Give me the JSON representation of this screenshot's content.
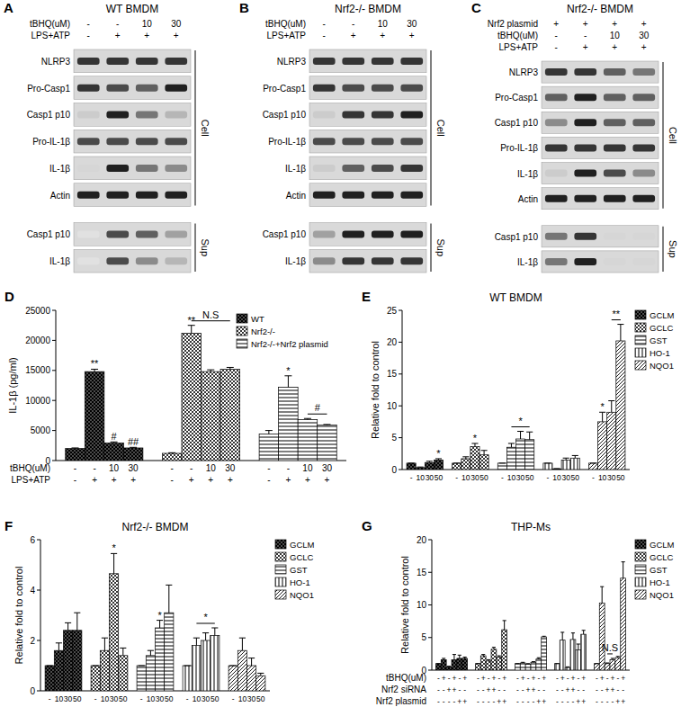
{
  "blots": [
    {
      "panel": "A",
      "title": "WT BMDM",
      "headers": [
        {
          "label": "tBHQ(uM)",
          "labels": [
            "-",
            "-",
            "10",
            "30"
          ]
        },
        {
          "label": "LPS+ATP",
          "labels": [
            "-",
            "+",
            "+",
            "+"
          ]
        }
      ],
      "groups": [
        {
          "name": "Cell",
          "rows": [
            {
              "label": "NLRP3",
              "intensities": [
                0.8,
                0.8,
                0.8,
                0.8
              ]
            },
            {
              "label": "Pro-Casp1",
              "intensities": [
                0.8,
                0.7,
                0.6,
                0.9
              ]
            },
            {
              "label": "Casp1 p10",
              "intensities": [
                0.1,
                0.9,
                0.5,
                0.2
              ]
            },
            {
              "label": "Pro-IL-1β",
              "intensities": [
                0.7,
                0.7,
                0.7,
                0.7
              ]
            },
            {
              "label": "IL-1β",
              "intensities": [
                0.05,
                0.9,
                0.5,
                0.4
              ]
            },
            {
              "label": "Actin",
              "intensities": [
                0.9,
                0.9,
                0.9,
                0.9
              ]
            }
          ]
        },
        {
          "name": "Sup",
          "rows": [
            {
              "label": "Casp1 p10",
              "intensities": [
                0,
                0.7,
                0.6,
                0.3
              ]
            },
            {
              "label": "IL-1β",
              "intensities": [
                0,
                0.7,
                0.4,
                0.2
              ]
            }
          ]
        }
      ]
    },
    {
      "panel": "B",
      "title": "Nrf2-/- BMDM",
      "headers": [
        {
          "label": "tBHQ(uM)",
          "labels": [
            "-",
            "-",
            "10",
            "30"
          ]
        },
        {
          "label": "LPS+ATP",
          "labels": [
            "-",
            "+",
            "+",
            "+"
          ]
        }
      ],
      "groups": [
        {
          "name": "Cell",
          "rows": [
            {
              "label": "NLRP3",
              "intensities": [
                0.8,
                0.8,
                0.8,
                0.8
              ]
            },
            {
              "label": "Pro-Casp1",
              "intensities": [
                0.8,
                0.7,
                0.7,
                0.7
              ]
            },
            {
              "label": "Casp1 p10",
              "intensities": [
                0.1,
                0.8,
                0.8,
                0.9
              ]
            },
            {
              "label": "Pro-IL-1β",
              "intensities": [
                0.7,
                0.7,
                0.7,
                0.7
              ]
            },
            {
              "label": "IL-1β",
              "intensities": [
                0.1,
                0.6,
                0.7,
                0.8
              ]
            },
            {
              "label": "Actin",
              "intensities": [
                0.9,
                0.9,
                0.9,
                0.9
              ]
            }
          ]
        },
        {
          "name": "Sup",
          "rows": [
            {
              "label": "Casp1 p10",
              "intensities": [
                0.3,
                0.9,
                0.9,
                0.9
              ]
            },
            {
              "label": "IL-1β",
              "intensities": [
                0.4,
                0.8,
                0.8,
                0.8
              ]
            }
          ]
        }
      ]
    },
    {
      "panel": "C",
      "title": "Nrf2-/- BMDM",
      "headers": [
        {
          "label": "Nrf2 plasmid",
          "labels": [
            "+",
            "+",
            "+",
            "+"
          ]
        },
        {
          "label": "tBHQ(uM)",
          "labels": [
            "-",
            "-",
            "10",
            "30"
          ]
        },
        {
          "label": "LPS+ATP",
          "labels": [
            "-",
            "+",
            "+",
            "+"
          ]
        }
      ],
      "groups": [
        {
          "name": "Cell",
          "rows": [
            {
              "label": "NLRP3",
              "intensities": [
                0.8,
                0.8,
                0.6,
                0.5
              ]
            },
            {
              "label": "Pro-Casp1",
              "intensities": [
                0.6,
                0.9,
                0.6,
                0.6
              ]
            },
            {
              "label": "Casp1 p10",
              "intensities": [
                0.4,
                0.9,
                0.6,
                0.6
              ]
            },
            {
              "label": "Pro-IL-1β",
              "intensities": [
                0.8,
                0.8,
                0.8,
                0.8
              ]
            },
            {
              "label": "IL-1β",
              "intensities": [
                0.1,
                0.9,
                0.7,
                0.4
              ]
            },
            {
              "label": "Actin",
              "intensities": [
                0.9,
                0.9,
                0.9,
                0.9
              ]
            }
          ]
        },
        {
          "name": "Sup",
          "rows": [
            {
              "label": "Casp1 p10",
              "intensities": [
                0.5,
                0.8,
                0.05,
                0.05
              ]
            },
            {
              "label": "IL-1β",
              "intensities": [
                0.5,
                0.9,
                0.05,
                0.05
              ]
            }
          ]
        }
      ]
    }
  ],
  "chart_data": [
    {
      "panel": "D",
      "type": "bar",
      "y_label": "IL-1β (pg/ml)",
      "ylim": [
        0,
        25000
      ],
      "yticks": [
        0,
        5000,
        10000,
        15000,
        20000,
        25000
      ],
      "grid": false,
      "legend": "upper right",
      "x_rows": [
        {
          "label": "tBHQ(uM)",
          "labels": [
            "-",
            "-",
            "10",
            "30"
          ]
        },
        {
          "label": "LPS+ATP",
          "labels": [
            "-",
            "+",
            "+",
            "+"
          ]
        }
      ],
      "series": [
        {
          "name": "WT",
          "color": "#000000",
          "values": [
            2000,
            14800,
            2900,
            2100
          ],
          "errors": [
            100,
            400,
            200,
            100
          ]
        },
        {
          "name": "Nrf2-/-",
          "color": "#000000",
          "values": [
            1200,
            21200,
            14800,
            15200
          ],
          "errors": [
            100,
            1300,
            300,
            300
          ]
        },
        {
          "name": "Nrf2-/-+Nrf2 plasmid",
          "color": "#000000",
          "values": [
            4400,
            12200,
            6800,
            5900
          ],
          "errors": [
            600,
            1900,
            200,
            100
          ]
        }
      ],
      "annotations": [
        {
          "text": "**",
          "series": 0,
          "from": 1,
          "to": 1
        },
        {
          "text": "#",
          "series": 0,
          "from": 2,
          "to": 2
        },
        {
          "text": "##",
          "series": 0,
          "from": 3,
          "to": 3
        },
        {
          "text": "**",
          "series": 1,
          "from": 1,
          "to": 1
        },
        {
          "text": "N.S",
          "series": 1,
          "from": 1,
          "to": 3
        },
        {
          "text": "*",
          "series": 2,
          "from": 1,
          "to": 1
        },
        {
          "text": "#",
          "series": 2,
          "from": 2,
          "to": 3
        }
      ]
    },
    {
      "panel": "E",
      "type": "bar",
      "title": "WT BMDM",
      "y_label": "Relative fold to control",
      "ylim": [
        0,
        25
      ],
      "yticks": [
        0,
        5,
        10,
        15,
        20,
        25
      ],
      "grid": false,
      "legend": "right",
      "x_rows": [
        {
          "labels": [
            "-",
            "10",
            "30",
            "50"
          ]
        }
      ],
      "series": [
        {
          "name": "GCLM",
          "color": "#000000",
          "values": [
            1,
            0.3,
            1.1,
            1.5
          ],
          "errors": [
            0,
            0.1,
            0.2,
            0.2
          ]
        },
        {
          "name": "GCLC",
          "color": "#000000",
          "values": [
            1,
            1.7,
            3.6,
            2.3
          ],
          "errors": [
            0,
            0.3,
            0.5,
            0.7
          ]
        },
        {
          "name": "GST",
          "color": "#000000",
          "values": [
            1,
            3.5,
            4.8,
            4.7
          ],
          "errors": [
            0,
            0.6,
            1.2,
            1.2
          ]
        },
        {
          "name": "HO-1",
          "color": "#000000",
          "values": [
            1,
            0.1,
            1.5,
            1.8
          ],
          "errors": [
            0,
            0.05,
            0.3,
            0.4
          ]
        },
        {
          "name": "NQO1",
          "color": "#000000",
          "values": [
            1,
            7.5,
            9,
            20.2
          ],
          "errors": [
            0,
            1.5,
            1.8,
            2.6
          ]
        }
      ],
      "annotations": [
        {
          "text": "*",
          "series": 0,
          "from": 3,
          "to": 3
        },
        {
          "text": "*",
          "series": 1,
          "from": 2,
          "to": 2
        },
        {
          "text": "*",
          "series": 2,
          "from": 1,
          "to": 3
        },
        {
          "text": "*",
          "series": 4,
          "from": 1,
          "to": 1
        },
        {
          "text": "**",
          "series": 4,
          "from": 2,
          "to": 3
        }
      ]
    },
    {
      "panel": "F",
      "type": "bar",
      "title": "Nrf2-/- BMDM",
      "y_label": "Relative fold to control",
      "ylim": [
        0,
        6
      ],
      "yticks": [
        0,
        2,
        4,
        6
      ],
      "grid": false,
      "legend": "right",
      "x_rows": [
        {
          "labels": [
            "-",
            "10",
            "30",
            "50"
          ]
        }
      ],
      "series": [
        {
          "name": "GCLM",
          "color": "#000000",
          "values": [
            1,
            1.6,
            2.4,
            2.4
          ],
          "errors": [
            0,
            0.3,
            0.3,
            0.7
          ]
        },
        {
          "name": "GCLC",
          "color": "#000000",
          "values": [
            1,
            1.6,
            4.65,
            1.4
          ],
          "errors": [
            0,
            0.5,
            0.8,
            0.3
          ]
        },
        {
          "name": "GST",
          "color": "#000000",
          "values": [
            1,
            1.4,
            2.5,
            3.1
          ],
          "errors": [
            0,
            0.2,
            0.3,
            1.1
          ]
        },
        {
          "name": "HO-1",
          "color": "#000000",
          "values": [
            1,
            1.8,
            2,
            2.2
          ],
          "errors": [
            0,
            0.3,
            0.3,
            0.3
          ]
        },
        {
          "name": "NQO1",
          "color": "#000000",
          "values": [
            1,
            1.6,
            1,
            0.6
          ],
          "errors": [
            0,
            0.5,
            0.3,
            0.1
          ]
        }
      ],
      "annotations": [
        {
          "text": "*",
          "series": 1,
          "from": 2,
          "to": 2
        },
        {
          "text": "*",
          "series": 2,
          "from": 2,
          "to": 2
        },
        {
          "text": "*",
          "series": 3,
          "from": 1,
          "to": 3
        }
      ]
    },
    {
      "panel": "G",
      "type": "bar",
      "title": "THP-Ms",
      "y_label": "Relative fold to control",
      "ylim": [
        0,
        20
      ],
      "yticks": [
        0,
        5,
        10,
        15,
        20
      ],
      "grid": false,
      "legend": "right",
      "x_rows": [
        {
          "label": "tBHQ(uM)",
          "labels": [
            "-",
            "+",
            "-",
            "+",
            "-",
            "+"
          ]
        },
        {
          "label": "Nrf2 siRNA",
          "labels": [
            "-",
            "-",
            "+",
            "+",
            "-",
            "-"
          ]
        },
        {
          "label": "Nrf2 plasmid",
          "labels": [
            "-",
            "-",
            "-",
            "-",
            "+",
            "+"
          ]
        }
      ],
      "series": [
        {
          "name": "GCLM",
          "color": "#000000",
          "values": [
            1,
            1.6,
            0.5,
            1.6,
            1.8,
            1.8
          ],
          "errors": [
            0,
            0.2,
            0.1,
            0.8,
            0.5,
            0.2
          ]
        },
        {
          "name": "GCLC",
          "color": "#000000",
          "values": [
            1,
            2.2,
            1.4,
            3.2,
            2,
            6.2
          ],
          "errors": [
            0,
            0.2,
            0.2,
            0.3,
            0.2,
            1.4
          ]
        },
        {
          "name": "GST",
          "color": "#000000",
          "values": [
            1,
            1.1,
            0.9,
            1.2,
            1.7,
            5.1
          ],
          "errors": [
            0,
            0.1,
            0.1,
            0.1,
            0.2,
            0.1
          ]
        },
        {
          "name": "HO-1",
          "color": "#000000",
          "values": [
            1,
            4.6,
            0.4,
            4.7,
            3.1,
            5.5
          ],
          "errors": [
            0,
            1.2,
            0.1,
            1,
            0.9,
            0.6
          ]
        },
        {
          "name": "NQO1",
          "color": "#000000",
          "values": [
            1,
            10.3,
            1,
            1.6,
            1.9,
            14.1
          ],
          "errors": [
            0,
            2.5,
            0.1,
            0.2,
            0.2,
            2.5
          ]
        }
      ],
      "annotations": [
        {
          "text": "N.S",
          "series": 4,
          "from": 2,
          "to": 3
        }
      ]
    }
  ]
}
